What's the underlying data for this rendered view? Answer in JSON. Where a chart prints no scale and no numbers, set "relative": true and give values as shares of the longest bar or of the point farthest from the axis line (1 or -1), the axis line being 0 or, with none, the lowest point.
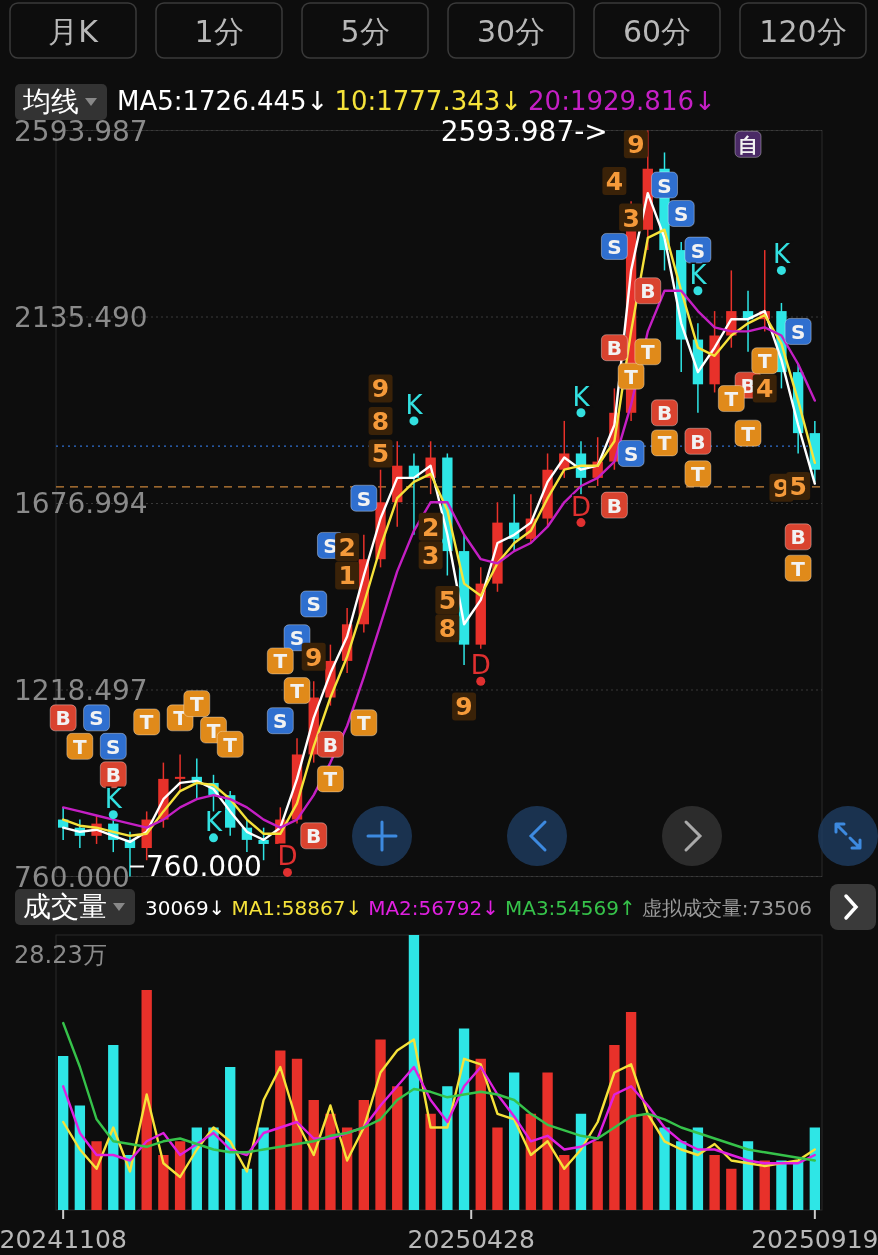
{
  "chart_data": [
    {
      "type": "other",
      "annotations": [
        "月K",
        "1分",
        "5分",
        "30分",
        "60分",
        "120分"
      ]
    },
    {
      "type": "candlestick",
      "legend": "top left",
      "legend_title": "均线",
      "grid": "y",
      "tick_labels": "y",
      "xlim": [
        "2024-11-05",
        "2025-09-22"
      ],
      "ylim": [
        760,
        2593.987
      ],
      "yticks": [
        {
          "value": 760,
          "label": "760.000"
        },
        {
          "value": 1218.497,
          "label": "1218.497"
        },
        {
          "value": 1676.994,
          "label": "1676.994"
        },
        {
          "value": 2135.49,
          "label": "2135.490"
        },
        {
          "value": 2593.987,
          "label": "2593.987"
        }
      ],
      "x": [
        "2024-11-08",
        "2024-11-15",
        "2024-11-22",
        "2024-11-29",
        "2024-12-06",
        "2024-12-13",
        "2024-12-20",
        "2024-12-27",
        "2025-01-03",
        "2025-01-10",
        "2025-01-17",
        "2025-01-24",
        "2025-01-31",
        "2025-02-07",
        "2025-02-14",
        "2025-02-21",
        "2025-02-28",
        "2025-03-07",
        "2025-03-14",
        "2025-03-21",
        "2025-03-28",
        "2025-04-04",
        "2025-04-11",
        "2025-04-18",
        "2025-04-25",
        "2025-05-02",
        "2025-05-09",
        "2025-05-16",
        "2025-05-23",
        "2025-05-30",
        "2025-06-06",
        "2025-06-13",
        "2025-06-20",
        "2025-06-27",
        "2025-07-04",
        "2025-07-11",
        "2025-07-18",
        "2025-07-25",
        "2025-08-01",
        "2025-08-08",
        "2025-08-15",
        "2025-08-22",
        "2025-08-29",
        "2025-09-05",
        "2025-09-12",
        "2025-09-19"
      ],
      "ohlc": [
        [
          900,
          930,
          850,
          880
        ],
        [
          880,
          900,
          830,
          860
        ],
        [
          860,
          910,
          840,
          890
        ],
        [
          890,
          900,
          820,
          850
        ],
        [
          850,
          870,
          760,
          830
        ],
        [
          830,
          920,
          800,
          900
        ],
        [
          900,
          1040,
          880,
          1000
        ],
        [
          1000,
          1060,
          970,
          1005
        ],
        [
          1005,
          1050,
          950,
          990
        ],
        [
          990,
          1010,
          920,
          960
        ],
        [
          960,
          970,
          860,
          880
        ],
        [
          880,
          900,
          820,
          850
        ],
        [
          850,
          880,
          800,
          840
        ],
        [
          840,
          930,
          830,
          900
        ],
        [
          900,
          1100,
          890,
          1060
        ],
        [
          1060,
          1240,
          1040,
          1200
        ],
        [
          1200,
          1330,
          1180,
          1290
        ],
        [
          1290,
          1420,
          1260,
          1380
        ],
        [
          1380,
          1600,
          1360,
          1540
        ],
        [
          1540,
          1760,
          1520,
          1680
        ],
        [
          1680,
          1830,
          1620,
          1770
        ],
        [
          1770,
          1800,
          1600,
          1740
        ],
        [
          1740,
          1830,
          1700,
          1790
        ],
        [
          1790,
          1800,
          1500,
          1560
        ],
        [
          1560,
          1600,
          1280,
          1330
        ],
        [
          1330,
          1520,
          1320,
          1480
        ],
        [
          1480,
          1680,
          1460,
          1630
        ],
        [
          1630,
          1700,
          1560,
          1590
        ],
        [
          1590,
          1700,
          1580,
          1640
        ],
        [
          1640,
          1800,
          1620,
          1760
        ],
        [
          1760,
          1880,
          1740,
          1800
        ],
        [
          1800,
          1830,
          1700,
          1740
        ],
        [
          1740,
          1840,
          1720,
          1780
        ],
        [
          1780,
          1960,
          1760,
          1900
        ],
        [
          1900,
          2420,
          1880,
          2350
        ],
        [
          2350,
          2593.987,
          2300,
          2500
        ],
        [
          2500,
          2540,
          2250,
          2300
        ],
        [
          2300,
          2320,
          2000,
          2080
        ],
        [
          2080,
          2120,
          1900,
          1970
        ],
        [
          1970,
          2150,
          1950,
          2090
        ],
        [
          2090,
          2250,
          2060,
          2150
        ],
        [
          2150,
          2200,
          2050,
          2130
        ],
        [
          2130,
          2300,
          2100,
          2150
        ],
        [
          2150,
          2170,
          1960,
          2000
        ],
        [
          2000,
          2020,
          1800,
          1850
        ],
        [
          1850,
          1880,
          1730,
          1760
        ]
      ],
      "colors": [
        "#2ee6e6",
        "#2ee6e6",
        "#e8312a",
        "#2ee6e6",
        "#2ee6e6",
        "#e8312a",
        "#e8312a",
        "#e8312a",
        "#2ee6e6",
        "#2ee6e6",
        "#2ee6e6",
        "#2ee6e6",
        "#2ee6e6",
        "#e8312a",
        "#e8312a",
        "#e8312a",
        "#e8312a",
        "#e8312a",
        "#e8312a",
        "#e8312a",
        "#e8312a",
        "#2ee6e6",
        "#e8312a",
        "#2ee6e6",
        "#2ee6e6",
        "#e8312a",
        "#e8312a",
        "#2ee6e6",
        "#e8312a",
        "#e8312a",
        "#e8312a",
        "#2ee6e6",
        "#e8312a",
        "#e8312a",
        "#e8312a",
        "#e8312a",
        "#2ee6e6",
        "#2ee6e6",
        "#2ee6e6",
        "#e8312a",
        "#e8312a",
        "#2ee6e6",
        "#e8312a",
        "#2ee6e6",
        "#2ee6e6",
        "#2ee6e6"
      ],
      "series": [
        {
          "type": "line",
          "name": "MA5:1726.445↓",
          "color": "#ffffff",
          "values": [
            880,
            870,
            875,
            860,
            845,
            870,
            950,
            990,
            995,
            975,
            920,
            870,
            850,
            880,
            1000,
            1150,
            1260,
            1350,
            1500,
            1640,
            1740,
            1740,
            1770,
            1600,
            1380,
            1440,
            1580,
            1600,
            1630,
            1730,
            1790,
            1760,
            1770,
            1870,
            2250,
            2440,
            2330,
            2120,
            2000,
            2060,
            2130,
            2130,
            2150,
            2030,
            1870,
            1726
          ]
        },
        {
          "type": "line",
          "name": "10:1777.343↓",
          "color": "#f5e23a",
          "values": [
            900,
            885,
            880,
            870,
            860,
            865,
            920,
            970,
            990,
            985,
            950,
            900,
            865,
            865,
            940,
            1080,
            1200,
            1300,
            1430,
            1570,
            1690,
            1730,
            1750,
            1660,
            1480,
            1450,
            1530,
            1580,
            1610,
            1690,
            1760,
            1770,
            1770,
            1830,
            2100,
            2330,
            2350,
            2200,
            2060,
            2040,
            2090,
            2120,
            2140,
            2070,
            1930,
            1777
          ]
        },
        {
          "type": "line",
          "name": "20:1929.816↓",
          "color": "#c41fc4",
          "values": [
            930,
            920,
            910,
            900,
            890,
            880,
            900,
            930,
            950,
            960,
            950,
            930,
            900,
            880,
            900,
            960,
            1040,
            1130,
            1250,
            1380,
            1510,
            1610,
            1680,
            1680,
            1600,
            1540,
            1530,
            1560,
            1580,
            1620,
            1680,
            1720,
            1740,
            1780,
            1920,
            2100,
            2200,
            2200,
            2150,
            2110,
            2100,
            2100,
            2110,
            2090,
            2020,
            1930
          ]
        },
        {
          "type": "scatter",
          "marker": "square",
          "color": "#2f6fcf",
          "x": [
            "2024-11-22",
            "2024-11-29",
            "2025-02-07",
            "2025-02-14",
            "2025-02-21",
            "2025-02-28",
            "2025-03-14",
            "2025-06-27",
            "2025-07-04",
            "2025-07-18",
            "2025-07-25",
            "2025-08-01",
            "2025-09-12"
          ],
          "values": [
            1150,
            1080,
            1143,
            1347,
            1430,
            1574,
            1690,
            2309,
            1800,
            2460,
            2390,
            2300,
            2100
          ],
          "value_labels": [
            "S",
            "S",
            "S",
            "S",
            "S",
            "S",
            "S",
            "S",
            "S",
            "S",
            "S",
            "S",
            "S"
          ]
        },
        {
          "type": "scatter",
          "marker": "square",
          "color": "#d9432f",
          "x": [
            "2024-11-08",
            "2024-11-29",
            "2025-02-21",
            "2025-02-28",
            "2025-06-27",
            "2025-06-27",
            "2025-07-11",
            "2025-07-18",
            "2025-08-01",
            "2025-08-22",
            "2025-09-12"
          ],
          "values": [
            1150,
            1010,
            860,
            1085,
            1673,
            2060,
            2200,
            1900,
            1830,
            1968,
            1595
          ],
          "value_labels": [
            "B",
            "B",
            "B",
            "B",
            "B",
            "B",
            "B",
            "B",
            "B",
            "B",
            "B"
          ]
        },
        {
          "type": "scatter",
          "marker": "square",
          "color": "#e08a1a",
          "x": [
            "2024-11-15",
            "2024-12-13",
            "2024-12-27",
            "2025-01-03",
            "2025-01-10",
            "2025-01-17",
            "2025-02-07",
            "2025-02-14",
            "2025-02-28",
            "2025-03-14",
            "2025-07-04",
            "2025-07-11",
            "2025-07-18",
            "2025-08-01",
            "2025-08-15",
            "2025-08-22",
            "2025-08-29",
            "2025-09-12"
          ],
          "values": [
            1080,
            1140,
            1150,
            1185,
            1120,
            1085,
            1290,
            1217,
            1000,
            1138,
            1990,
            2050,
            1826,
            1750,
            1935,
            1850,
            2028,
            1518
          ],
          "value_labels": [
            "T",
            "T",
            "T",
            "T",
            "T",
            "T",
            "T",
            "T",
            "T",
            "T",
            "T",
            "T",
            "T",
            "T",
            "T",
            "T",
            "T",
            "T"
          ]
        },
        {
          "type": "scatter",
          "marker": "square",
          "color": "#4a2a66",
          "x": [
            "2025-08-22"
          ],
          "values": [
            2560
          ],
          "value_labels": [
            "自"
          ]
        },
        {
          "type": "scatter",
          "marker": "circle",
          "color": "#33e0e0",
          "x": [
            "2024-11-29",
            "2025-01-10",
            "2025-04-04",
            "2025-06-13",
            "2025-08-01",
            "2025-09-05"
          ],
          "values": [
            912,
            855,
            1880,
            1900,
            2200,
            2250
          ],
          "value_labels": [
            "K",
            "K",
            "K",
            "K",
            "K",
            "K"
          ]
        },
        {
          "type": "scatter",
          "marker": "circle",
          "color": "#e03030",
          "x": [
            "2025-02-10",
            "2025-05-02",
            "2025-06-13"
          ],
          "values": [
            770,
            1240,
            1630
          ],
          "value_labels": [
            "D",
            "D",
            "D"
          ]
        }
      ],
      "ref_lines": [
        {
          "axis": "y",
          "value": 1718,
          "color": "#c8843a",
          "line_style": "dashed"
        },
        {
          "axis": "y",
          "value": 1818,
          "color": "#2f6fcf",
          "line_style": "dotted"
        }
      ],
      "annotations": [
        "2593.987->",
        {
          "text": "760.000",
          "x": "2024-12-06",
          "y": 760
        },
        {
          "text": "9",
          "x": "2025-07-06",
          "y": 2560
        },
        {
          "text": "9",
          "x": "2025-02-21",
          "y": 1300
        },
        {
          "text": "9",
          "x": "2025-03-21",
          "y": 1960
        },
        {
          "text": "9",
          "x": "2025-04-25",
          "y": 1178
        },
        {
          "text": "9",
          "x": "2025-09-05",
          "y": 1716
        },
        {
          "text": "1",
          "x": "2025-03-07",
          "y": 1500
        },
        {
          "text": "2",
          "x": "2025-03-07",
          "y": 1570
        },
        {
          "text": "5",
          "x": "2025-03-21",
          "y": 1800
        },
        {
          "text": "8",
          "x": "2025-03-21",
          "y": 1880
        },
        {
          "text": "2",
          "x": "2025-04-11",
          "y": 1620
        },
        {
          "text": "3",
          "x": "2025-04-11",
          "y": 1550
        },
        {
          "text": "5",
          "x": "2025-04-18",
          "y": 1440
        },
        {
          "text": "8",
          "x": "2025-04-18",
          "y": 1370
        },
        {
          "text": "4",
          "x": "2025-06-27",
          "y": 2470
        },
        {
          "text": "3",
          "x": "2025-07-04",
          "y": 2380
        },
        {
          "text": "4",
          "x": "2025-08-29",
          "y": 1960
        },
        {
          "text": "5",
          "x": "2025-09-12",
          "y": 1720
        }
      ]
    },
    {
      "type": "bar",
      "relative": true,
      "legend": "top",
      "legend_title": "成交量",
      "xlim": [
        "2024-11-05",
        "2025-09-22"
      ],
      "xticks": [
        {
          "value": "2024-11-08",
          "label": "20241108"
        },
        {
          "value": "2025-04-28",
          "label": "20250428"
        },
        {
          "value": "2025-09-19",
          "label": "20250919"
        }
      ],
      "x": [
        "2024-11-08",
        "2024-11-15",
        "2024-11-22",
        "2024-11-29",
        "2024-12-06",
        "2024-12-13",
        "2024-12-20",
        "2024-12-27",
        "2025-01-03",
        "2025-01-10",
        "2025-01-17",
        "2025-01-24",
        "2025-01-31",
        "2025-02-07",
        "2025-02-14",
        "2025-02-21",
        "2025-02-28",
        "2025-03-07",
        "2025-03-14",
        "2025-03-21",
        "2025-03-28",
        "2025-04-04",
        "2025-04-11",
        "2025-04-18",
        "2025-04-25",
        "2025-05-02",
        "2025-05-09",
        "2025-05-16",
        "2025-05-23",
        "2025-05-30",
        "2025-06-06",
        "2025-06-13",
        "2025-06-20",
        "2025-06-27",
        "2025-07-04",
        "2025-07-11",
        "2025-07-18",
        "2025-07-25",
        "2025-08-01",
        "2025-08-08",
        "2025-08-15",
        "2025-08-22",
        "2025-08-29",
        "2025-09-05",
        "2025-09-12",
        "2025-09-19"
      ],
      "values": [
        0.56,
        0.38,
        0.25,
        0.6,
        0.2,
        0.8,
        0.2,
        0.25,
        0.3,
        0.3,
        0.52,
        0.15,
        0.3,
        0.58,
        0.55,
        0.4,
        0.35,
        0.3,
        0.4,
        0.62,
        0.45,
        1,
        0.35,
        0.45,
        0.66,
        0.55,
        0.3,
        0.5,
        0.35,
        0.5,
        0.2,
        0.35,
        0.25,
        0.6,
        0.72,
        0.35,
        0.3,
        0.25,
        0.3,
        0.2,
        0.15,
        0.25,
        0.18,
        0.18,
        0.18,
        0.3
      ],
      "colors": [
        "#2ee6e6",
        "#2ee6e6",
        "#e8312a",
        "#2ee6e6",
        "#2ee6e6",
        "#e8312a",
        "#e8312a",
        "#e8312a",
        "#2ee6e6",
        "#2ee6e6",
        "#2ee6e6",
        "#2ee6e6",
        "#2ee6e6",
        "#e8312a",
        "#e8312a",
        "#e8312a",
        "#e8312a",
        "#e8312a",
        "#e8312a",
        "#e8312a",
        "#e8312a",
        "#2ee6e6",
        "#e8312a",
        "#2ee6e6",
        "#2ee6e6",
        "#e8312a",
        "#e8312a",
        "#2ee6e6",
        "#e8312a",
        "#e8312a",
        "#e8312a",
        "#2ee6e6",
        "#e8312a",
        "#e8312a",
        "#e8312a",
        "#e8312a",
        "#2ee6e6",
        "#2ee6e6",
        "#2ee6e6",
        "#e8312a",
        "#e8312a",
        "#2ee6e6",
        "#e8312a",
        "#2ee6e6",
        "#2ee6e6",
        "#2ee6e6"
      ],
      "series": [
        {
          "type": "line",
          "name": "MA1:58867↓",
          "color": "#f5e23a",
          "values": [
            0.32,
            0.22,
            0.15,
            0.3,
            0.14,
            0.42,
            0.17,
            0.12,
            0.22,
            0.3,
            0.25,
            0.14,
            0.4,
            0.52,
            0.32,
            0.2,
            0.38,
            0.18,
            0.3,
            0.5,
            0.58,
            0.62,
            0.3,
            0.3,
            0.55,
            0.53,
            0.35,
            0.33,
            0.2,
            0.25,
            0.15,
            0.22,
            0.32,
            0.5,
            0.53,
            0.35,
            0.25,
            0.22,
            0.2,
            0.24,
            0.18,
            0.17,
            0.16,
            0.17,
            0.18,
            0.22
          ]
        },
        {
          "type": "line",
          "name": "MA2:56792↓",
          "color": "#e020e0",
          "values": [
            0.45,
            0.28,
            0.2,
            0.2,
            0.18,
            0.25,
            0.28,
            0.2,
            0.24,
            0.28,
            0.22,
            0.2,
            0.28,
            0.3,
            0.32,
            0.26,
            0.26,
            0.28,
            0.3,
            0.38,
            0.45,
            0.52,
            0.4,
            0.32,
            0.45,
            0.52,
            0.42,
            0.34,
            0.25,
            0.27,
            0.22,
            0.23,
            0.26,
            0.42,
            0.45,
            0.38,
            0.3,
            0.25,
            0.22,
            0.22,
            0.2,
            0.18,
            0.17,
            0.17,
            0.17,
            0.2
          ]
        },
        {
          "type": "line",
          "name": "MA3:54569↑",
          "color": "#36c24a",
          "values": [
            0.68,
            0.52,
            0.33,
            0.25,
            0.24,
            0.23,
            0.25,
            0.26,
            0.24,
            0.22,
            0.21,
            0.21,
            0.22,
            0.23,
            0.24,
            0.25,
            0.27,
            0.28,
            0.3,
            0.33,
            0.4,
            0.44,
            0.43,
            0.41,
            0.42,
            0.43,
            0.42,
            0.4,
            0.35,
            0.31,
            0.29,
            0.27,
            0.26,
            0.3,
            0.34,
            0.35,
            0.33,
            0.3,
            0.28,
            0.26,
            0.24,
            0.22,
            0.21,
            0.2,
            0.19,
            0.18
          ]
        }
      ],
      "annotations": [
        "28.23万",
        "30069↓",
        "虚拟成交量:73506"
      ]
    }
  ]
}
